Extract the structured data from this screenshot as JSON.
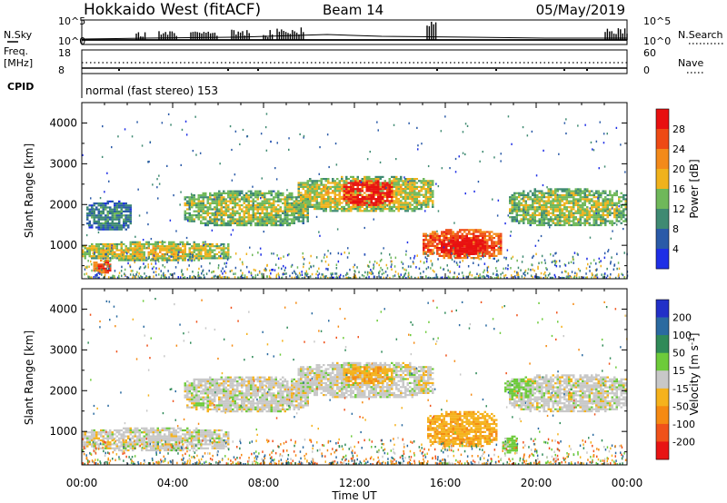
{
  "header": {
    "station": "Hokkaido West (fitACF)",
    "beam": "Beam 14",
    "date": "05/May/2019"
  },
  "noise_panel": {
    "left_label": "N.Sky",
    "right_label": "N.Search",
    "tick_top": "10^5",
    "tick_bottom": "10^0"
  },
  "freq_panel": {
    "label_line1": "Freq.",
    "label_line2": "[MHz]",
    "left_ticks": [
      "18",
      "8"
    ],
    "right_label": "Nave",
    "right_ticks": [
      "60",
      "0"
    ]
  },
  "cpid": {
    "label": "CPID",
    "mode": "normal (fast stereo) 153"
  },
  "axes": {
    "ylabel": "Slant Range [km]",
    "yticks": [
      "1000",
      "2000",
      "3000",
      "4000"
    ],
    "xlabel": "Time UT",
    "xticks": [
      "00:00",
      "04:00",
      "08:00",
      "12:00",
      "16:00",
      "20:00",
      "00:00"
    ]
  },
  "power_scale": {
    "label": "Power [dB]",
    "ticks": [
      "4",
      "8",
      "12",
      "16",
      "20",
      "24",
      "28"
    ],
    "colors": [
      "#1e2ee6",
      "#2a5aa8",
      "#3f8a72",
      "#6fb85a",
      "#f0b21c",
      "#f38a1a",
      "#ee4a14",
      "#e81010"
    ]
  },
  "velocity_scale": {
    "label": "Velocity [m s^-1]",
    "ticks": [
      "200",
      "100",
      "50",
      "15",
      "-15",
      "-50",
      "-100",
      "-200"
    ],
    "colors": [
      "#2230c8",
      "#2a6aa0",
      "#2f8a58",
      "#6dcb3a",
      "#c8c8c8",
      "#f5b21c",
      "#f58a12",
      "#f0521a",
      "#e81414"
    ]
  },
  "chart_data": {
    "type": "heatmap",
    "x_range_hours": [
      0,
      24
    ],
    "y_range_km": [
      180,
      4500
    ],
    "power_panel": {
      "regions": [
        {
          "t_start": 0.0,
          "t_end": 6.5,
          "range_km": [
            650,
            1100
          ],
          "power_db": 14
        },
        {
          "t_start": 0.5,
          "t_end": 1.3,
          "range_km": [
            350,
            650
          ],
          "power_db": 24
        },
        {
          "t_start": 0.2,
          "t_end": 2.2,
          "range_km": [
            1400,
            2100
          ],
          "power_db": 6
        },
        {
          "t_start": 4.5,
          "t_end": 10.0,
          "range_km": [
            1500,
            2350
          ],
          "power_db": 12
        },
        {
          "t_start": 9.5,
          "t_end": 15.5,
          "range_km": [
            1850,
            2700
          ],
          "power_db": 14
        },
        {
          "t_start": 11.5,
          "t_end": 13.7,
          "range_km": [
            2000,
            2600
          ],
          "power_db": 28
        },
        {
          "t_start": 15.0,
          "t_end": 18.5,
          "range_km": [
            700,
            1400
          ],
          "power_db": 24
        },
        {
          "t_start": 15.8,
          "t_end": 17.8,
          "range_km": [
            800,
            1200
          ],
          "power_db": 30
        },
        {
          "t_start": 18.8,
          "t_end": 24.0,
          "range_km": [
            1500,
            2400
          ],
          "power_db": 12
        }
      ]
    },
    "velocity_panel": {
      "regions": [
        {
          "t_start": 0.0,
          "t_end": 6.5,
          "range_km": [
            550,
            1100
          ],
          "velocity_ms": 0
        },
        {
          "t_start": 4.5,
          "t_end": 10.0,
          "range_km": [
            1500,
            2350
          ],
          "velocity_ms": 0
        },
        {
          "t_start": 9.5,
          "t_end": 15.5,
          "range_km": [
            1850,
            2700
          ],
          "velocity_ms": 0
        },
        {
          "t_start": 11.5,
          "t_end": 13.7,
          "range_km": [
            2200,
            2600
          ],
          "velocity_ms": -40
        },
        {
          "t_start": 15.2,
          "t_end": 18.3,
          "range_km": [
            650,
            1500
          ],
          "velocity_ms": -40
        },
        {
          "t_start": 18.5,
          "t_end": 19.2,
          "range_km": [
            500,
            900
          ],
          "velocity_ms": 30
        },
        {
          "t_start": 18.8,
          "t_end": 24.0,
          "range_km": [
            1500,
            2400
          ],
          "velocity_ms": 0
        },
        {
          "t_start": 18.6,
          "t_end": 19.8,
          "range_km": [
            1900,
            2300
          ],
          "velocity_ms": 30
        }
      ]
    }
  }
}
